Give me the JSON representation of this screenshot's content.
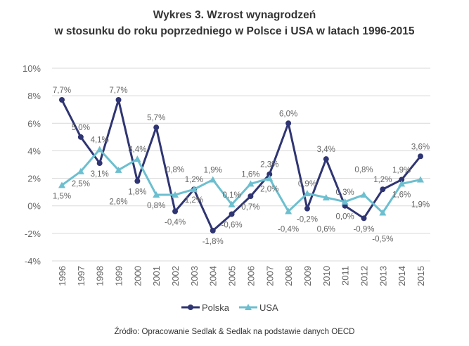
{
  "chart_data": {
    "type": "line",
    "title_line1": "Wykres 3. Wzrost wynagrodzeń",
    "title_line2": "w stosunku do roku poprzedniego w Polsce i USA w latach 1996-2015",
    "xlabel": "",
    "ylabel": "",
    "categories": [
      "1996",
      "1997",
      "1998",
      "1999",
      "2000",
      "2001",
      "2002",
      "2003",
      "2004",
      "2005",
      "2006",
      "2007",
      "2008",
      "2009",
      "2010",
      "2011",
      "2012",
      "2013",
      "2014",
      "2015"
    ],
    "ylim": [
      -4,
      10
    ],
    "yticks": [
      -4,
      -2,
      0,
      2,
      4,
      6,
      8,
      10
    ],
    "ytick_labels": [
      "-4%",
      "-2%",
      "0%",
      "2%",
      "4%",
      "6%",
      "8%",
      "10%"
    ],
    "grid": true,
    "legend_position": "bottom",
    "series": [
      {
        "name": "Polska",
        "color": "#2f3572",
        "marker": "circle",
        "values": [
          7.7,
          5.0,
          3.1,
          7.7,
          1.8,
          5.7,
          -0.4,
          1.2,
          -1.8,
          -0.6,
          0.7,
          2.3,
          6.0,
          -0.2,
          3.4,
          0.0,
          -0.9,
          1.2,
          1.9,
          3.6
        ],
        "labels": [
          "7,7%",
          "5,0%",
          "3,1%",
          "7,7%",
          "1,8%",
          "5,7%",
          "-0,4%",
          "1,2%",
          "-1,8%",
          "-0,6%",
          "0,7%",
          "2,3%",
          "6,0%",
          "-0,2%",
          "3,4%",
          "0,0%",
          "-0,9%",
          "1,2%",
          "1,9%",
          "3,6%"
        ]
      },
      {
        "name": "USA",
        "color": "#6cbfcf",
        "marker": "triangle",
        "values": [
          1.5,
          2.5,
          4.1,
          2.6,
          3.4,
          0.8,
          0.8,
          1.2,
          1.9,
          0.1,
          1.6,
          2.0,
          -0.4,
          0.9,
          0.6,
          0.3,
          0.8,
          -0.5,
          1.6,
          1.9
        ],
        "labels": [
          "1,5%",
          "2,5%",
          "4,1%",
          "2,6%",
          "3,4%",
          "0,8%",
          "0,8%",
          "1,2%",
          "1,9%",
          "0,1%",
          "1,6%",
          "2,0%",
          "-0,4%",
          "0,9%",
          "0,6%",
          "0,3%",
          "0,8%",
          "-0,5%",
          "1,6%",
          "1,9%"
        ]
      }
    ],
    "source": "Źródło: Opracowanie Sedlak & Sedlak na podstawie danych OECD"
  }
}
